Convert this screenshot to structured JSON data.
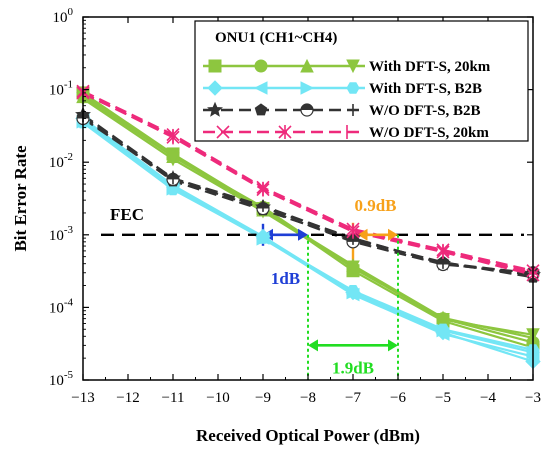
{
  "chart_data": {
    "type": "line",
    "xlabel": "Received Optical Power (dBm)",
    "ylabel": "Bit Error Rate",
    "xlim": [
      -13,
      -3
    ],
    "ylim_log10": [
      -5,
      0
    ],
    "y_scale": "log",
    "x_ticks": [
      "−13",
      "−12",
      "−11",
      "−10",
      "−9",
      "−8",
      "−7",
      "−6",
      "−5",
      "−4",
      "−3"
    ],
    "x_tick_values": [
      -13,
      -12,
      -11,
      -10,
      -9,
      -8,
      -7,
      -6,
      -5,
      -4,
      -3
    ],
    "y_ticks": [
      {
        "base": "10",
        "exp": "-5",
        "value": 1e-05
      },
      {
        "base": "10",
        "exp": "-4",
        "value": 0.0001
      },
      {
        "base": "10",
        "exp": "-3",
        "value": 0.001
      },
      {
        "base": "10",
        "exp": "-2",
        "value": 0.01
      },
      {
        "base": "10",
        "exp": "-1",
        "value": 0.1
      },
      {
        "base": "10",
        "exp": "0",
        "value": 1
      }
    ],
    "grid": false,
    "legend": {
      "title": "ONU1 (CH1~CH4)",
      "placement": "top-right",
      "entries": [
        {
          "label": "With DFT-S, 20km",
          "color": "#8dc63f",
          "dash": "solid",
          "markers": [
            "square",
            "circle",
            "triangle-up",
            "triangle-down"
          ]
        },
        {
          "label": "With DFT-S, B2B",
          "color": "#73e6f5",
          "dash": "solid",
          "markers": [
            "diamond",
            "triangle-left",
            "triangle-right",
            "hexagon"
          ]
        },
        {
          "label": "W/O DFT-S, B2B",
          "color": "#333333",
          "dash": "dash",
          "markers": [
            "star",
            "pentagon",
            "half-circle",
            "plus"
          ]
        },
        {
          "label": "W/O DFT-S, 20km",
          "color": "#ee2a7b",
          "dash": "dash",
          "markers": [
            "x",
            "asterisk",
            "vline"
          ]
        }
      ]
    },
    "series": [
      {
        "name": "With DFT-S, 20km",
        "color": "#8dc63f",
        "dash": "solid",
        "marker": "square",
        "x": [
          -13,
          -11,
          -9,
          -7,
          -5,
          -3
        ],
        "y": [
          0.09,
          0.013,
          0.0023,
          0.00032,
          6.5e-05,
          2.8e-05
        ]
      },
      {
        "name": "With DFT-S, 20km",
        "color": "#8dc63f",
        "dash": "solid",
        "marker": "circle",
        "x": [
          -13,
          -11,
          -9,
          -7,
          -5,
          -3
        ],
        "y": [
          0.085,
          0.012,
          0.0024,
          0.00035,
          7e-05,
          3.3e-05
        ]
      },
      {
        "name": "With DFT-S, 20km",
        "color": "#8dc63f",
        "dash": "solid",
        "marker": "triangle-up",
        "x": [
          -13,
          -11,
          -9,
          -7,
          -5,
          -3
        ],
        "y": [
          0.08,
          0.012,
          0.0022,
          0.00038,
          7.2e-05,
          3.8e-05
        ]
      },
      {
        "name": "With DFT-S, 20km",
        "color": "#8dc63f",
        "dash": "solid",
        "marker": "triangle-down",
        "x": [
          -13,
          -11,
          -9,
          -7,
          -5,
          -3
        ],
        "y": [
          0.075,
          0.011,
          0.0021,
          0.00036,
          6.8e-05,
          4.2e-05
        ]
      },
      {
        "name": "With DFT-S, B2B",
        "color": "#73e6f5",
        "dash": "solid",
        "marker": "diamond",
        "x": [
          -13,
          -11,
          -9,
          -7,
          -5,
          -3
        ],
        "y": [
          0.04,
          0.0048,
          0.00095,
          0.00016,
          4.5e-05,
          1.8e-05
        ]
      },
      {
        "name": "With DFT-S, B2B",
        "color": "#73e6f5",
        "dash": "solid",
        "marker": "triangle-left",
        "x": [
          -13,
          -11,
          -9,
          -7,
          -5,
          -3
        ],
        "y": [
          0.038,
          0.0045,
          0.0009,
          0.00015,
          4.3e-05,
          2.1e-05
        ]
      },
      {
        "name": "With DFT-S, B2B",
        "color": "#73e6f5",
        "dash": "solid",
        "marker": "triangle-right",
        "x": [
          -13,
          -11,
          -9,
          -7,
          -5,
          -3
        ],
        "y": [
          0.036,
          0.0043,
          0.00088,
          0.00016,
          4.8e-05,
          2.4e-05
        ]
      },
      {
        "name": "With DFT-S, B2B",
        "color": "#73e6f5",
        "dash": "solid",
        "marker": "hexagon",
        "x": [
          -13,
          -11,
          -9,
          -7,
          -5,
          -3
        ],
        "y": [
          0.035,
          0.0042,
          0.0009,
          0.00017,
          5e-05,
          2.6e-05
        ]
      },
      {
        "name": "W/O DFT-S, B2B",
        "color": "#333333",
        "dash": "dash",
        "marker": "star",
        "x": [
          -13,
          -11,
          -9,
          -7,
          -5,
          -3
        ],
        "y": [
          0.045,
          0.006,
          0.0024,
          0.0009,
          0.0004,
          0.00028
        ]
      },
      {
        "name": "W/O DFT-S, B2B",
        "color": "#333333",
        "dash": "dash",
        "marker": "pentagon",
        "x": [
          -13,
          -11,
          -9,
          -7,
          -5,
          -3
        ],
        "y": [
          0.042,
          0.0055,
          0.0022,
          0.00085,
          0.00042,
          0.00026
        ]
      },
      {
        "name": "W/O DFT-S, B2B",
        "color": "#333333",
        "dash": "dash",
        "marker": "half-circle",
        "x": [
          -13,
          -11,
          -9,
          -7,
          -5,
          -3
        ],
        "y": [
          0.04,
          0.0058,
          0.0023,
          0.0008,
          0.00039,
          0.0003
        ]
      },
      {
        "name": "W/O DFT-S, B2B",
        "color": "#333333",
        "dash": "dash",
        "marker": "plus",
        "x": [
          -13,
          -11,
          -9,
          -7,
          -5,
          -3
        ],
        "y": [
          0.043,
          0.006,
          0.0025,
          0.00088,
          0.00041,
          0.00029
        ]
      },
      {
        "name": "W/O DFT-S, 20km",
        "color": "#ee2a7b",
        "dash": "dash",
        "marker": "x",
        "x": [
          -13,
          -11,
          -9,
          -7,
          -5,
          -3
        ],
        "y": [
          0.095,
          0.024,
          0.0045,
          0.0012,
          0.00062,
          0.00032
        ]
      },
      {
        "name": "W/O DFT-S, 20km",
        "color": "#ee2a7b",
        "dash": "dash",
        "marker": "asterisk",
        "x": [
          -13,
          -11,
          -9,
          -7,
          -5,
          -3
        ],
        "y": [
          0.09,
          0.022,
          0.0042,
          0.0011,
          0.00058,
          0.00028
        ]
      },
      {
        "name": "W/O DFT-S, 20km",
        "color": "#ee2a7b",
        "dash": "dash",
        "marker": "vline",
        "x": [
          -13,
          -11,
          -9,
          -7,
          -5,
          -3
        ],
        "y": [
          0.088,
          0.023,
          0.0043,
          0.00115,
          0.0006,
          0.0003
        ]
      }
    ],
    "annotations": {
      "fec": {
        "label": "FEC",
        "y": 0.001,
        "x_from": -13,
        "x_to": -3,
        "color": "#000000"
      },
      "gap_b2b": {
        "label": "1dB",
        "x_from": -9,
        "x_to": -8,
        "y": 0.001,
        "color": "#1f3fd6"
      },
      "gap_dft": {
        "label": "0.9dB",
        "x_from": -6.9,
        "x_to": -6,
        "y": 0.001,
        "color": "#f7a11a"
      },
      "gap_total": {
        "label": "1.9dB",
        "x_from": -8,
        "x_to": -6,
        "y": 3e-05,
        "color": "#22dd22"
      },
      "guide_left_x": -8,
      "guide_right_x": -6,
      "guide_color": "#22dd22"
    }
  }
}
